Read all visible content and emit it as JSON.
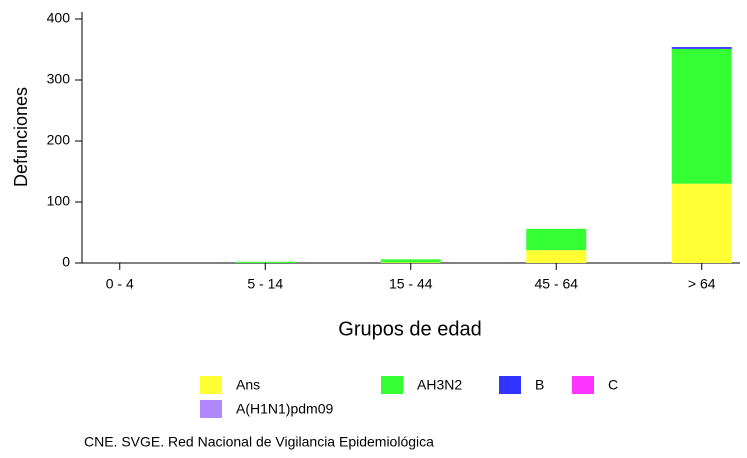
{
  "chart_data": {
    "type": "stacked-bar",
    "x_label": "Grupos de edad",
    "y_label": "Defunciones",
    "categories": [
      "0 - 4",
      "5 - 14",
      "15 - 44",
      "45 - 64",
      "> 64"
    ],
    "series": [
      {
        "name": "Ans",
        "color": "#ffff33",
        "values": [
          0,
          0,
          1,
          21,
          130
        ]
      },
      {
        "name": "AH3N2",
        "color": "#33ff33",
        "values": [
          0,
          2,
          5,
          35,
          221
        ]
      },
      {
        "name": "B",
        "color": "#3333ff",
        "values": [
          0,
          0,
          0,
          0,
          3
        ]
      },
      {
        "name": "C",
        "color": "#ff33ff",
        "values": [
          0,
          0,
          0,
          0,
          0
        ]
      },
      {
        "name": "A(H1N1)pdm09",
        "color": "#b088ff",
        "values": [
          0,
          0,
          0,
          0,
          0
        ]
      }
    ],
    "ylim": [
      0,
      400
    ],
    "yticks": [
      0,
      100,
      200,
      300,
      400
    ],
    "source": "CNE. SVGE. Red Nacional de Vigilancia Epidemiológica"
  }
}
